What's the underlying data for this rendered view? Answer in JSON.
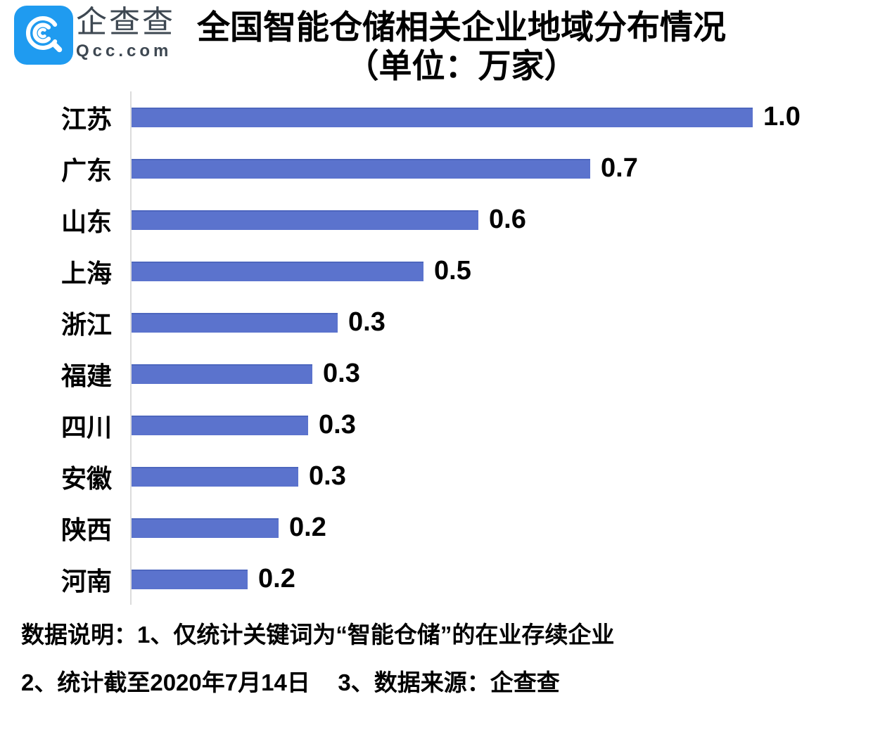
{
  "brand": {
    "name": "企查查",
    "domain": "Qcc.com",
    "logo_icon": "qcc-spiral-magnifier"
  },
  "title": {
    "line1": "全国智能仓储相关企业地域分布情况",
    "line2": "（单位：万家）"
  },
  "footer": {
    "line1": "数据说明：1、仅统计关键词为“智能仓储”的在业存续企业",
    "line2a": "2、统计截至2020年7月14日",
    "line2b": "3、数据来源：企查查"
  },
  "colors": {
    "bar": "#5B73CD",
    "bar_top_edge": "#4D66BE",
    "axis": "#DCDCDC",
    "logo_blue": "#1F9BF0",
    "brand_text": "#3E4852"
  },
  "chart_data": {
    "type": "bar",
    "orientation": "horizontal",
    "title": "全国智能仓储相关企业地域分布情况",
    "subtitle": "（单位：万家）",
    "unit": "万家",
    "xlabel": "",
    "ylabel": "",
    "grid": false,
    "legend": false,
    "xlim": [
      0,
      1.1
    ],
    "categories": [
      "江苏",
      "广东",
      "山东",
      "上海",
      "浙江",
      "福建",
      "四川",
      "安徽",
      "陕西",
      "河南"
    ],
    "values": [
      1.0,
      0.7,
      0.6,
      0.5,
      0.3,
      0.3,
      0.3,
      0.3,
      0.2,
      0.2
    ],
    "value_labels": [
      "1.0",
      "0.7",
      "0.6",
      "0.5",
      "0.3",
      "0.3",
      "0.3",
      "0.3",
      "0.2",
      "0.2"
    ],
    "bar_fractions": [
      1.0,
      0.738,
      0.558,
      0.47,
      0.332,
      0.291,
      0.284,
      0.268,
      0.237,
      0.187
    ]
  }
}
